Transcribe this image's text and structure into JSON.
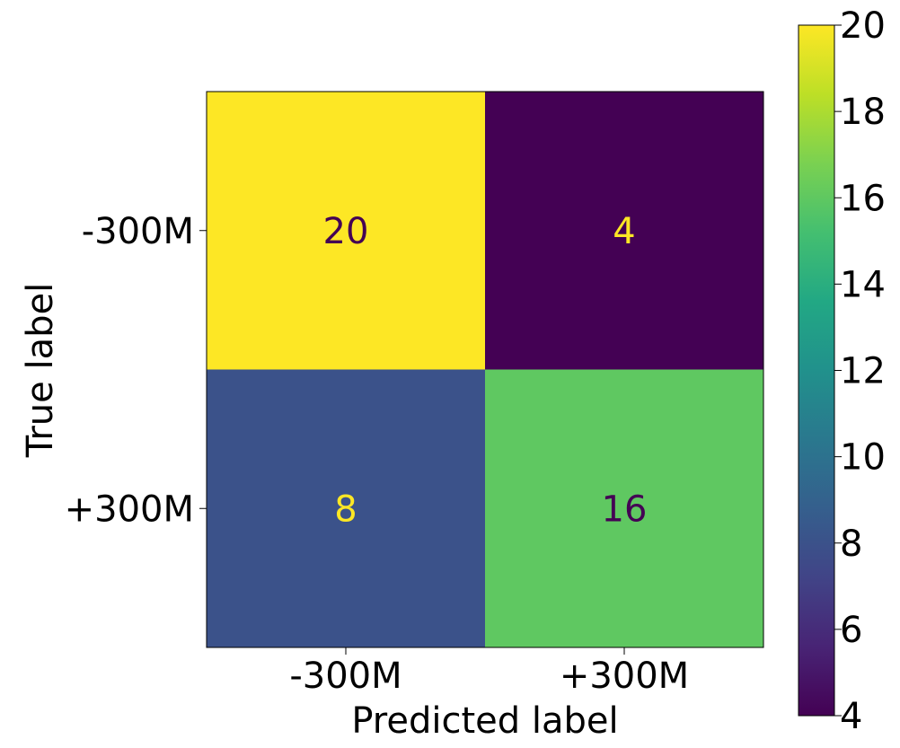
{
  "chart_data": {
    "type": "heatmap",
    "title": "",
    "xlabel": "Predicted label",
    "ylabel": "True label",
    "x_categories": [
      "-300M",
      "+300M"
    ],
    "y_categories": [
      "-300M",
      "+300M"
    ],
    "values": [
      [
        20,
        4
      ],
      [
        8,
        16
      ]
    ],
    "colormap": "viridis",
    "colorbar": {
      "min": 4,
      "max": 20,
      "ticks": [
        "4",
        "6",
        "8",
        "10",
        "12",
        "14",
        "16",
        "18",
        "20"
      ],
      "placement": "right"
    },
    "colors": {
      "high": "#fde725",
      "low": "#440154",
      "text_on_dark": "#fde725",
      "text_on_light": "#440154"
    },
    "grid": false
  }
}
